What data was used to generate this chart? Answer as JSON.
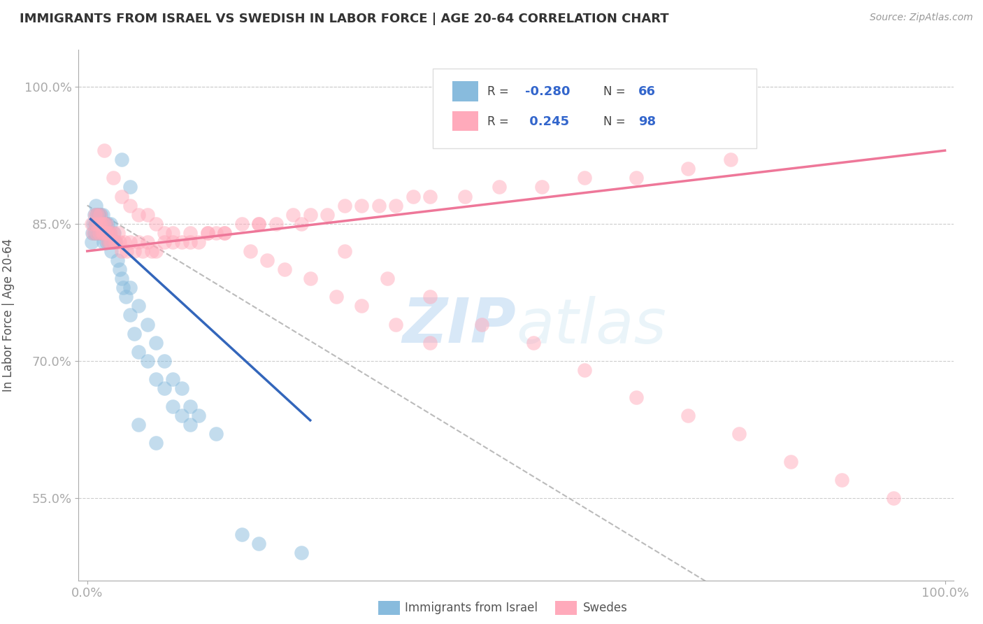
{
  "title": "IMMIGRANTS FROM ISRAEL VS SWEDISH IN LABOR FORCE | AGE 20-64 CORRELATION CHART",
  "source": "Source: ZipAtlas.com",
  "ylabel": "In Labor Force | Age 20-64",
  "x_min": 0.0,
  "x_max": 1.0,
  "y_min": 0.46,
  "y_max": 1.04,
  "yticks": [
    0.55,
    0.7,
    0.85,
    1.0
  ],
  "ytick_labels": [
    "55.0%",
    "70.0%",
    "85.0%",
    "100.0%"
  ],
  "xticks": [
    0.0,
    1.0
  ],
  "xtick_labels": [
    "0.0%",
    "100.0%"
  ],
  "legend_blue_label": "Immigrants from Israel",
  "legend_pink_label": "Swedes",
  "R_blue": -0.28,
  "N_blue": 66,
  "R_pink": 0.245,
  "N_pink": 98,
  "blue_color": "#88BBDD",
  "pink_color": "#FFAABB",
  "blue_line_color": "#3366BB",
  "pink_line_color": "#EE7799",
  "gray_line_color": "#BBBBBB",
  "watermark_color": "#CCDDF0",
  "background_color": "#FFFFFF",
  "grid_color": "#CCCCCC",
  "blue_x": [
    0.005,
    0.006,
    0.007,
    0.008,
    0.008,
    0.009,
    0.01,
    0.01,
    0.011,
    0.011,
    0.012,
    0.012,
    0.013,
    0.013,
    0.014,
    0.014,
    0.015,
    0.016,
    0.016,
    0.017,
    0.018,
    0.018,
    0.019,
    0.02,
    0.021,
    0.022,
    0.023,
    0.024,
    0.025,
    0.026,
    0.027,
    0.028,
    0.03,
    0.031,
    0.033,
    0.035,
    0.038,
    0.04,
    0.042,
    0.045,
    0.05,
    0.055,
    0.06,
    0.07,
    0.08,
    0.09,
    0.1,
    0.11,
    0.12,
    0.05,
    0.06,
    0.07,
    0.08,
    0.09,
    0.1,
    0.11,
    0.12,
    0.13,
    0.15,
    0.04,
    0.05,
    0.18,
    0.2,
    0.25,
    0.06,
    0.08
  ],
  "blue_y": [
    0.83,
    0.84,
    0.85,
    0.84,
    0.86,
    0.85,
    0.85,
    0.87,
    0.84,
    0.86,
    0.85,
    0.86,
    0.84,
    0.86,
    0.85,
    0.86,
    0.84,
    0.85,
    0.86,
    0.85,
    0.84,
    0.86,
    0.83,
    0.84,
    0.85,
    0.83,
    0.84,
    0.85,
    0.83,
    0.84,
    0.85,
    0.82,
    0.83,
    0.84,
    0.83,
    0.81,
    0.8,
    0.79,
    0.78,
    0.77,
    0.75,
    0.73,
    0.71,
    0.7,
    0.68,
    0.67,
    0.65,
    0.64,
    0.63,
    0.78,
    0.76,
    0.74,
    0.72,
    0.7,
    0.68,
    0.67,
    0.65,
    0.64,
    0.62,
    0.92,
    0.89,
    0.51,
    0.5,
    0.49,
    0.63,
    0.61
  ],
  "pink_x": [
    0.005,
    0.007,
    0.009,
    0.01,
    0.011,
    0.012,
    0.013,
    0.014,
    0.015,
    0.016,
    0.017,
    0.018,
    0.019,
    0.02,
    0.021,
    0.022,
    0.023,
    0.024,
    0.025,
    0.026,
    0.027,
    0.028,
    0.03,
    0.032,
    0.034,
    0.036,
    0.038,
    0.04,
    0.043,
    0.046,
    0.05,
    0.055,
    0.06,
    0.065,
    0.07,
    0.075,
    0.08,
    0.09,
    0.1,
    0.11,
    0.12,
    0.13,
    0.14,
    0.15,
    0.16,
    0.18,
    0.2,
    0.22,
    0.24,
    0.26,
    0.28,
    0.3,
    0.32,
    0.34,
    0.36,
    0.38,
    0.4,
    0.44,
    0.48,
    0.53,
    0.58,
    0.64,
    0.7,
    0.75,
    0.02,
    0.03,
    0.04,
    0.05,
    0.06,
    0.07,
    0.08,
    0.09,
    0.1,
    0.12,
    0.14,
    0.16,
    0.2,
    0.25,
    0.3,
    0.35,
    0.4,
    0.46,
    0.52,
    0.58,
    0.64,
    0.7,
    0.76,
    0.82,
    0.88,
    0.94,
    0.19,
    0.21,
    0.23,
    0.26,
    0.29,
    0.32,
    0.36,
    0.4
  ],
  "pink_y": [
    0.85,
    0.84,
    0.86,
    0.85,
    0.84,
    0.86,
    0.85,
    0.84,
    0.86,
    0.85,
    0.84,
    0.85,
    0.84,
    0.85,
    0.84,
    0.85,
    0.84,
    0.83,
    0.84,
    0.83,
    0.84,
    0.83,
    0.84,
    0.83,
    0.83,
    0.84,
    0.83,
    0.82,
    0.83,
    0.82,
    0.83,
    0.82,
    0.83,
    0.82,
    0.83,
    0.82,
    0.82,
    0.83,
    0.83,
    0.83,
    0.84,
    0.83,
    0.84,
    0.84,
    0.84,
    0.85,
    0.85,
    0.85,
    0.86,
    0.86,
    0.86,
    0.87,
    0.87,
    0.87,
    0.87,
    0.88,
    0.88,
    0.88,
    0.89,
    0.89,
    0.9,
    0.9,
    0.91,
    0.92,
    0.93,
    0.9,
    0.88,
    0.87,
    0.86,
    0.86,
    0.85,
    0.84,
    0.84,
    0.83,
    0.84,
    0.84,
    0.85,
    0.85,
    0.82,
    0.79,
    0.77,
    0.74,
    0.72,
    0.69,
    0.66,
    0.64,
    0.62,
    0.59,
    0.57,
    0.55,
    0.82,
    0.81,
    0.8,
    0.79,
    0.77,
    0.76,
    0.74,
    0.72
  ],
  "blue_line_x": [
    0.004,
    0.26
  ],
  "blue_line_y": [
    0.855,
    0.635
  ],
  "pink_line_x": [
    0.0,
    1.0
  ],
  "pink_line_y": [
    0.82,
    0.93
  ],
  "gray_line_x": [
    0.0,
    1.0
  ],
  "gray_line_y": [
    0.87,
    0.3
  ]
}
